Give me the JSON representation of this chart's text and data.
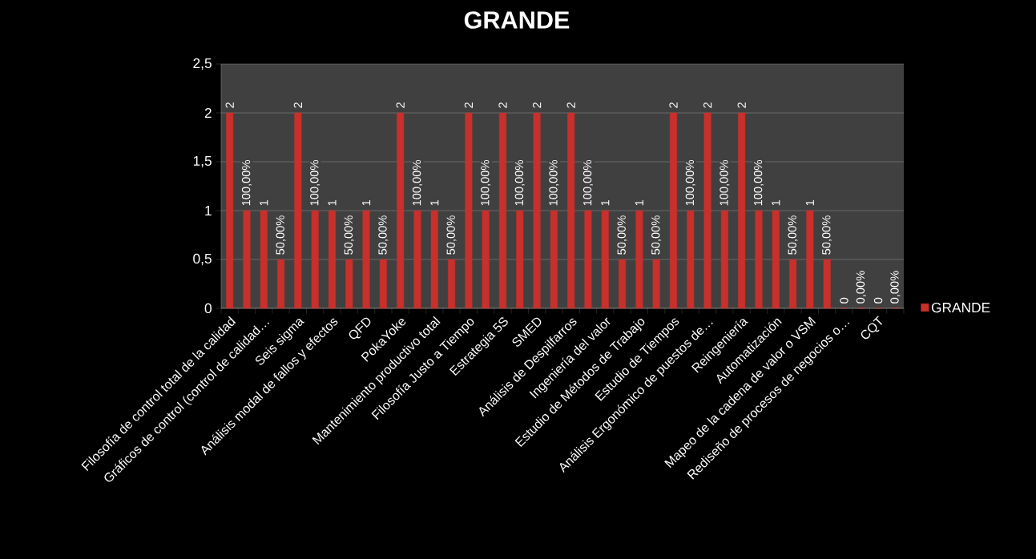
{
  "chart_data": {
    "type": "bar",
    "title": "GRANDE",
    "categories": [
      "Filosofía de control total de la calidad",
      null,
      "Gráficos de control (control de calidad…",
      null,
      "Seis sigma",
      null,
      "Análisis modal de fallos y efectos",
      null,
      "QFD",
      null,
      "PokaYoke",
      null,
      "Mantenimiento productivo total",
      null,
      "Filosofía Justo a Tiempo",
      null,
      "Estrategia 5S",
      null,
      "SMED",
      null,
      "Análisis de Despilfarros",
      null,
      "Ingeniería del valor",
      null,
      "Estudio de Métodos de Trabajo",
      null,
      "Estudio de Tiempos",
      null,
      "Análisis Ergonómico de puestos de…",
      null,
      "Reingeniería",
      null,
      "Automatización",
      null,
      "Mapeo de la cadena de valor o VSM",
      null,
      "Rediseño de procesos de negocios o…",
      null,
      "CQT",
      null
    ],
    "series": [
      {
        "name": "GRANDE",
        "color": "#c8302c",
        "values": [
          2,
          1,
          1,
          0.5,
          2,
          1,
          1,
          0.5,
          1,
          0.5,
          2,
          1,
          1,
          0.5,
          2,
          1,
          2,
          1,
          2,
          1,
          2,
          1,
          1,
          0.5,
          1,
          0.5,
          2,
          1,
          2,
          1,
          2,
          1,
          1,
          0.5,
          1,
          0.5,
          0,
          0,
          0,
          0
        ],
        "value_labels": [
          "2",
          "100,00%",
          "1",
          "50,00%",
          "2",
          "100,00%",
          "1",
          "50,00%",
          "1",
          "50,00%",
          "2",
          "100,00%",
          "1",
          "50,00%",
          "2",
          "100,00%",
          "2",
          "100,00%",
          "2",
          "100,00%",
          "2",
          "100,00%",
          "1",
          "50,00%",
          "1",
          "50,00%",
          "2",
          "100,00%",
          "2",
          "100,00%",
          "2",
          "100,00%",
          "1",
          "50,00%",
          "1",
          "50,00%",
          "0",
          "0,00%",
          "0",
          "0,00%"
        ]
      }
    ],
    "ylim": [
      0,
      2.5
    ],
    "yticks": [
      0,
      {
        "value": 0.5,
        "label": "0,5"
      },
      1,
      {
        "value": 1.5,
        "label": "1,5"
      },
      2,
      {
        "value": 2.5,
        "label": "2,5"
      }
    ],
    "grid": "y",
    "legend": "right"
  }
}
